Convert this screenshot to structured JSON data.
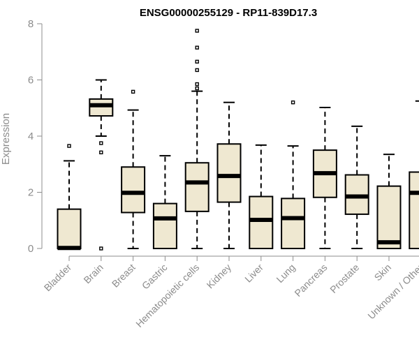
{
  "chart_data": {
    "type": "box",
    "title": "ENSG00000255129 - RP11-839D17.3",
    "ylabel": "Expression",
    "xlabel": "",
    "ylim": [
      0,
      8
    ],
    "yticks": [
      0,
      2,
      4,
      6,
      8
    ],
    "grid": false,
    "box_fill": "#efe8d1",
    "box_stroke": "#000000",
    "categories": [
      "Bladder",
      "Brain",
      "Breast",
      "Gastric",
      "Hematopoietic cells",
      "Kidney",
      "Liver",
      "Lung",
      "Pancreas",
      "Prostate",
      "Skin",
      "Unknown / Other"
    ],
    "boxes": [
      {
        "q1": 0.0,
        "median": 0.02,
        "q3": 1.4,
        "whisker_low": 0,
        "whisker_high": 3.12,
        "outliers": [
          3.65
        ]
      },
      {
        "q1": 4.72,
        "median": 5.1,
        "q3": 5.32,
        "whisker_low": 4.0,
        "whisker_high": 6.0,
        "outliers": [
          3.75,
          3.42,
          0.0
        ]
      },
      {
        "q1": 1.28,
        "median": 1.98,
        "q3": 2.9,
        "whisker_low": 0,
        "whisker_high": 4.93,
        "outliers": [
          5.58
        ]
      },
      {
        "q1": 0.0,
        "median": 1.07,
        "q3": 1.6,
        "whisker_low": 0,
        "whisker_high": 3.3,
        "outliers": []
      },
      {
        "q1": 1.32,
        "median": 2.35,
        "q3": 3.05,
        "whisker_low": 0,
        "whisker_high": 5.6,
        "outliers": [
          7.75,
          7.15,
          6.65,
          6.35,
          5.85,
          5.7
        ]
      },
      {
        "q1": 1.65,
        "median": 2.58,
        "q3": 3.72,
        "whisker_low": 0,
        "whisker_high": 5.2,
        "outliers": []
      },
      {
        "q1": 0.0,
        "median": 1.02,
        "q3": 1.85,
        "whisker_low": 0,
        "whisker_high": 3.68,
        "outliers": []
      },
      {
        "q1": 0.0,
        "median": 1.08,
        "q3": 1.78,
        "whisker_low": 0,
        "whisker_high": 3.65,
        "outliers": [
          5.2
        ]
      },
      {
        "q1": 1.82,
        "median": 2.68,
        "q3": 3.5,
        "whisker_low": 0,
        "whisker_high": 5.02,
        "outliers": []
      },
      {
        "q1": 1.22,
        "median": 1.85,
        "q3": 2.62,
        "whisker_low": 0,
        "whisker_high": 4.35,
        "outliers": []
      },
      {
        "q1": 0.0,
        "median": 0.22,
        "q3": 2.22,
        "whisker_low": 0,
        "whisker_high": 3.35,
        "outliers": []
      },
      {
        "q1": 0.0,
        "median": 1.98,
        "q3": 2.72,
        "whisker_low": 0,
        "whisker_high": 5.25,
        "outliers": []
      }
    ]
  }
}
